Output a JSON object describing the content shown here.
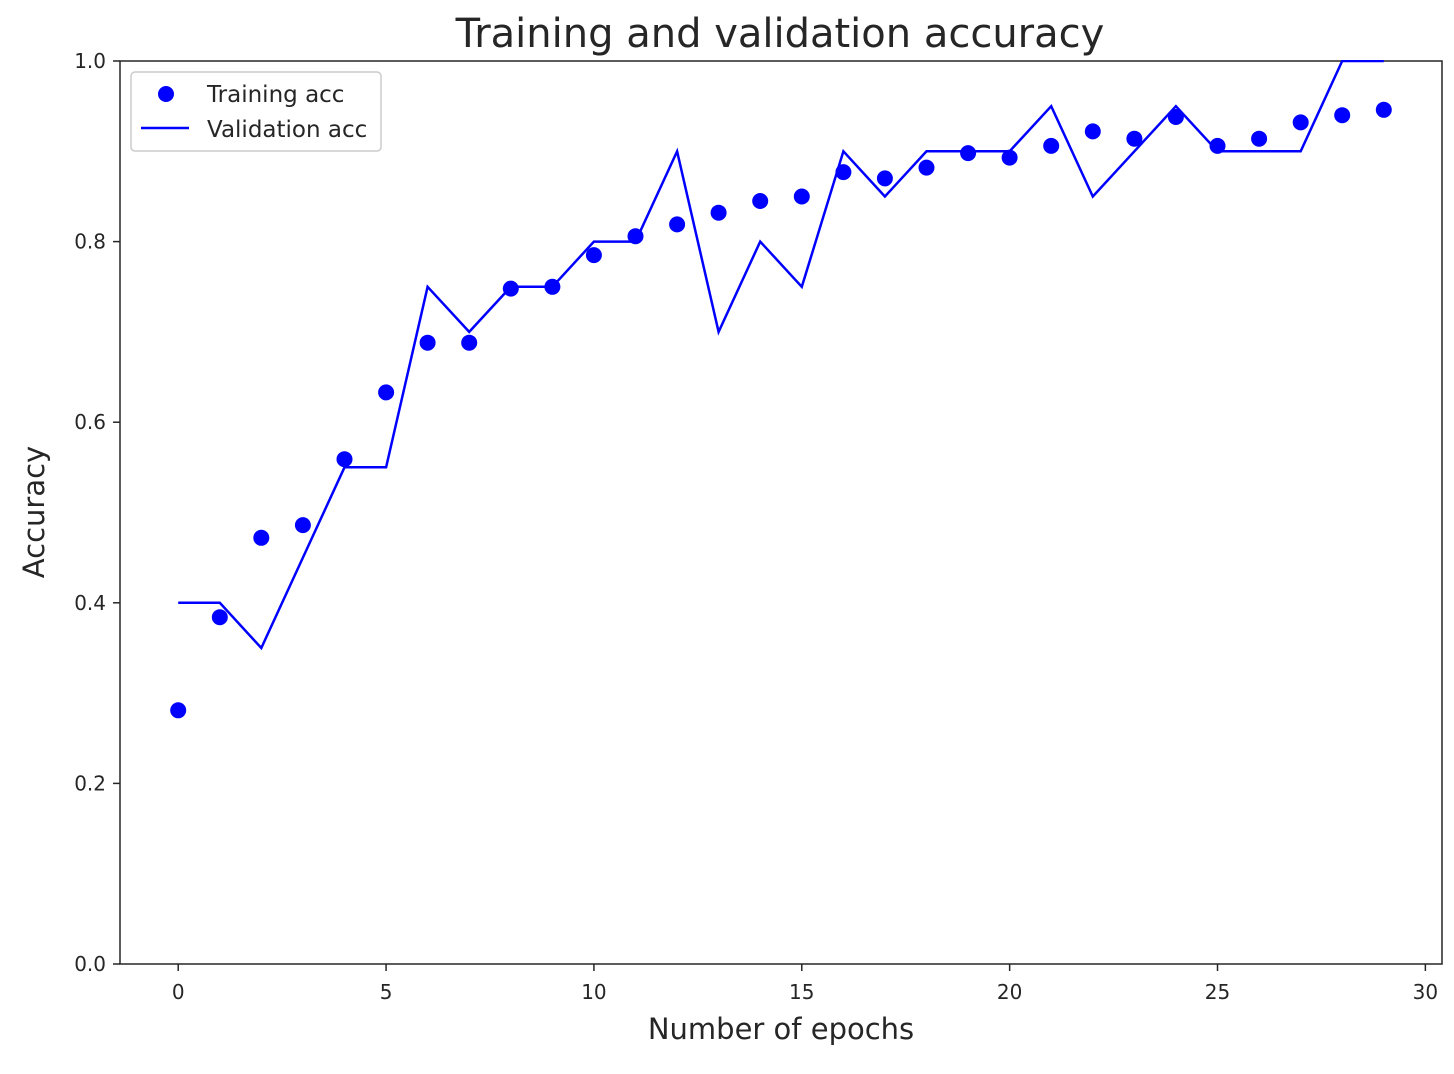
{
  "chart_data": {
    "type": "line",
    "title": "Training and validation accuracy",
    "xlabel": "Number of epochs",
    "ylabel": "Accuracy",
    "xlim": [
      -1.4,
      30.4
    ],
    "ylim": [
      0.0,
      1.0
    ],
    "xticks": [
      0,
      5,
      10,
      15,
      20,
      25,
      30
    ],
    "xtick_labels": [
      "0",
      "5",
      "10",
      "15",
      "20",
      "25",
      "30"
    ],
    "yticks": [
      0.0,
      0.2,
      0.4,
      0.6,
      0.8,
      1.0
    ],
    "ytick_labels": [
      "0.0",
      "0.2",
      "0.4",
      "0.6",
      "0.8",
      "1.0"
    ],
    "grid": false,
    "legend_position": "top-left",
    "x": [
      0,
      1,
      2,
      3,
      4,
      5,
      6,
      7,
      8,
      9,
      10,
      11,
      12,
      13,
      14,
      15,
      16,
      17,
      18,
      19,
      20,
      21,
      22,
      23,
      24,
      25,
      26,
      27,
      28,
      29
    ],
    "series": [
      {
        "name": "Training acc",
        "style": "points",
        "color": "#0000ff",
        "values": [
          0.281,
          0.384,
          0.472,
          0.486,
          0.559,
          0.633,
          0.688,
          0.688,
          0.748,
          0.75,
          0.785,
          0.806,
          0.819,
          0.832,
          0.845,
          0.85,
          0.877,
          0.87,
          0.882,
          0.898,
          0.893,
          0.906,
          0.922,
          0.914,
          0.938,
          0.906,
          0.914,
          0.932,
          0.94,
          0.946
        ]
      },
      {
        "name": "Validation acc",
        "style": "line",
        "color": "#0000ff",
        "values": [
          0.4,
          0.4,
          0.35,
          0.45,
          0.55,
          0.55,
          0.75,
          0.7,
          0.75,
          0.75,
          0.8,
          0.8,
          0.9,
          0.7,
          0.8,
          0.75,
          0.9,
          0.85,
          0.9,
          0.9,
          0.9,
          0.95,
          0.85,
          0.9,
          0.95,
          0.9,
          0.9,
          0.9,
          1.0,
          1.0
        ]
      }
    ]
  }
}
